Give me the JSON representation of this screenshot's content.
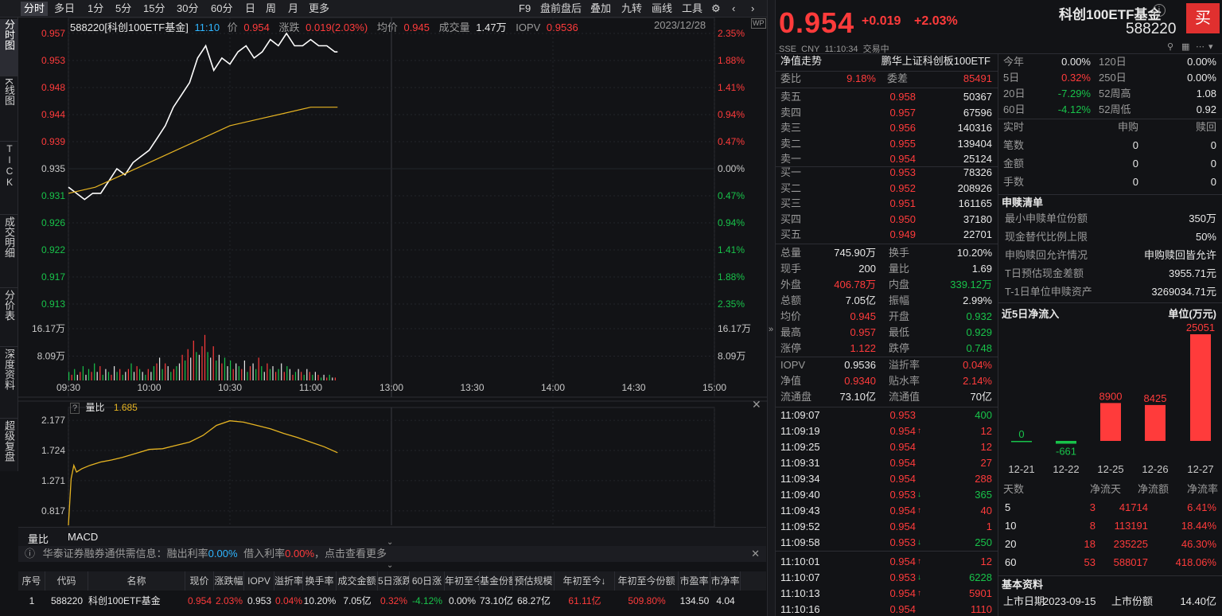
{
  "toolbar": {
    "tabs": [
      "分时",
      "多日",
      "1分",
      "5分",
      "15分",
      "30分",
      "60分",
      "日",
      "周",
      "月",
      "更多"
    ],
    "right_items": [
      "F9",
      "盘前盘后",
      "叠加",
      "九转",
      "画线",
      "工具"
    ]
  },
  "left_rail": [
    "分时图",
    "K线图",
    "TICK",
    "成交明细",
    "分价表",
    "深度资料",
    "超级复盘"
  ],
  "chart_header": {
    "code_name": "588220[科创100ETF基金]",
    "time": "11:10",
    "price_label": "价",
    "price": "0.954",
    "change_label": "涨跌",
    "change": "0.019(2.03%)",
    "avg_label": "均价",
    "avg": "0.945",
    "vol_label": "成交量",
    "vol": "1.47万",
    "iopv_label": "IOPV",
    "iopv": "0.9536",
    "date": "2023/12/28"
  },
  "chart_data": {
    "type": "line",
    "title": "",
    "x_ticks": [
      "09:30",
      "10:00",
      "10:30",
      "11:00",
      "13:00",
      "13:30",
      "14:00",
      "14:30",
      "15:00"
    ],
    "y_left_ticks": [
      "0.957",
      "0.953",
      "0.948",
      "0.944",
      "0.939",
      "0.935",
      "0.931",
      "0.926",
      "0.922",
      "0.917",
      "0.913"
    ],
    "y_right_ticks": [
      "2.35%",
      "1.88%",
      "1.41%",
      "0.94%",
      "0.47%",
      "0.00%",
      "0.47%",
      "0.94%",
      "1.41%",
      "1.88%",
      "2.35%"
    ],
    "ylim": [
      0.913,
      0.957
    ],
    "prev_close": 0.935,
    "series": [
      {
        "name": "价",
        "color": "#ffffff",
        "x_minutes": [
          0,
          3,
          6,
          9,
          12,
          15,
          18,
          21,
          24,
          27,
          30,
          33,
          36,
          39,
          42,
          45,
          48,
          51,
          54,
          57,
          60,
          63,
          66,
          69,
          72,
          75,
          78,
          81,
          84,
          87,
          90,
          93,
          96,
          99,
          100
        ],
        "values": [
          0.932,
          0.931,
          0.93,
          0.931,
          0.931,
          0.933,
          0.935,
          0.934,
          0.936,
          0.937,
          0.938,
          0.94,
          0.942,
          0.945,
          0.947,
          0.949,
          0.953,
          0.955,
          0.951,
          0.953,
          0.952,
          0.954,
          0.955,
          0.953,
          0.954,
          0.956,
          0.955,
          0.957,
          0.955,
          0.955,
          0.956,
          0.955,
          0.955,
          0.954,
          0.954
        ]
      },
      {
        "name": "均价",
        "color": "#e6b422",
        "x_minutes": [
          0,
          10,
          20,
          30,
          40,
          50,
          60,
          70,
          80,
          90,
          100
        ],
        "values": [
          0.931,
          0.932,
          0.934,
          0.936,
          0.938,
          0.94,
          0.942,
          0.943,
          0.944,
          0.945,
          0.945
        ]
      }
    ],
    "volume": {
      "y_ticks": [
        "16.17万",
        "8.09万"
      ],
      "ymax": 16.17,
      "bars": [
        3,
        2,
        4,
        2,
        3,
        5,
        2,
        4,
        3,
        6,
        3,
        5,
        2,
        4,
        3,
        2,
        5,
        3,
        4,
        2,
        3,
        4,
        6,
        3,
        5,
        4,
        3,
        2,
        4,
        3,
        5,
        6,
        8,
        4,
        6,
        5,
        3,
        4,
        5,
        6,
        9,
        7,
        11,
        8,
        14,
        10,
        9,
        12,
        16,
        10,
        8,
        12,
        7,
        9,
        6,
        8,
        5,
        7,
        4,
        6,
        5,
        4,
        7,
        3,
        5,
        6,
        4,
        8,
        5,
        3,
        6,
        4,
        5,
        3,
        4,
        6,
        3,
        5,
        4,
        2,
        3,
        4,
        3,
        2,
        4,
        3,
        2,
        3,
        2,
        1,
        2,
        1,
        2,
        1,
        1
      ],
      "colors": [
        "g",
        "r",
        "g",
        "w",
        "r",
        "g",
        "w",
        "g",
        "r",
        "g",
        "w",
        "r",
        "g",
        "w",
        "g",
        "r",
        "w",
        "g",
        "r",
        "g",
        "w",
        "r",
        "g",
        "w",
        "r",
        "g",
        "w",
        "g",
        "r",
        "w",
        "g",
        "r",
        "w",
        "g",
        "r",
        "w",
        "g",
        "r",
        "g",
        "w",
        "r",
        "g",
        "r",
        "w",
        "r",
        "g",
        "w",
        "r",
        "r",
        "g",
        "w",
        "r",
        "g",
        "w",
        "r",
        "g",
        "w",
        "g",
        "r",
        "w",
        "g",
        "r",
        "w",
        "g",
        "r",
        "w",
        "g",
        "r",
        "g",
        "w",
        "r",
        "g",
        "w",
        "r",
        "g",
        "w",
        "r",
        "g",
        "w",
        "r",
        "g",
        "w",
        "r",
        "g",
        "w",
        "r",
        "g",
        "w",
        "r",
        "g",
        "w",
        "r",
        "g",
        "w",
        "r"
      ]
    },
    "ratio": {
      "label": "量比",
      "value": "1.685",
      "y_ticks": [
        "2.177",
        "1.724",
        "1.271",
        "0.817"
      ],
      "ylim": [
        0.6,
        2.25
      ],
      "x_minutes": [
        0,
        1,
        2,
        3,
        5,
        8,
        12,
        16,
        20,
        25,
        30,
        35,
        40,
        45,
        50,
        55,
        60,
        65,
        70,
        75,
        80,
        85,
        90,
        95,
        100
      ],
      "values": [
        0.6,
        1.3,
        1.5,
        1.4,
        1.45,
        1.5,
        1.55,
        1.58,
        1.62,
        1.68,
        1.74,
        1.75,
        1.8,
        1.85,
        1.95,
        2.1,
        2.17,
        2.15,
        2.1,
        2.05,
        1.98,
        1.92,
        1.85,
        1.78,
        1.69
      ]
    }
  },
  "bottom_tabs": [
    "量比",
    "MACD"
  ],
  "info_bar": {
    "text1": "华泰证券融券通供需信息：融出利率",
    "rate1": "0.00%",
    "text2": "借入利率",
    "rate2": "0.00%",
    "text3": "，点击查看更多"
  },
  "bottom_table": {
    "headers": [
      "序号",
      "代码",
      "名称",
      "现价",
      "涨跌幅",
      "IOPV",
      "溢折率",
      "换手率",
      "成交金额",
      "5日涨跌",
      "60日涨",
      "年初至今",
      "基金份额",
      "预估规模",
      "年初至今↓",
      "年初至今份额",
      "市盈率",
      "市净率"
    ],
    "row": [
      "1",
      "588220",
      "科创100ETF基金",
      "0.954",
      "2.03%",
      "0.953",
      "0.04%",
      "10.20%",
      "7.05亿",
      "0.32%",
      "-4.12%",
      "0.00%",
      "73.10亿",
      "68.27亿",
      "61.11亿",
      "509.80%",
      "134.50",
      "4.04"
    ]
  },
  "quote": {
    "price": "0.954",
    "change": "+0.019",
    "pct": "+2.03%",
    "name": "科创100ETF基金",
    "code": "588220",
    "buy_label": "买",
    "market": "SSE",
    "currency": "CNY",
    "time": "11:10:34",
    "status": "交易中",
    "nav_trend": "净值走势",
    "index_name": "鹏华上证科创板100ETF",
    "weibi_label": "委比",
    "weibi": "9.18%",
    "weicha_label": "委差",
    "weicha": "85491",
    "asks": [
      {
        "label": "卖五",
        "price": "0.958",
        "vol": "50367"
      },
      {
        "label": "卖四",
        "price": "0.957",
        "vol": "67596"
      },
      {
        "label": "卖三",
        "price": "0.956",
        "vol": "140316"
      },
      {
        "label": "卖二",
        "price": "0.955",
        "vol": "139404"
      },
      {
        "label": "卖一",
        "price": "0.954",
        "vol": "25124"
      }
    ],
    "bids": [
      {
        "label": "买一",
        "price": "0.953",
        "vol": "78326"
      },
      {
        "label": "买二",
        "price": "0.952",
        "vol": "208926"
      },
      {
        "label": "买三",
        "price": "0.951",
        "vol": "161165"
      },
      {
        "label": "买四",
        "price": "0.950",
        "vol": "37180"
      },
      {
        "label": "买五",
        "price": "0.949",
        "vol": "22701"
      }
    ],
    "stats": [
      {
        "l1": "总量",
        "v1": "745.90万",
        "c1": "white",
        "l2": "换手",
        "v2": "10.20%",
        "c2": "white"
      },
      {
        "l1": "现手",
        "v1": "200",
        "c1": "white",
        "l2": "量比",
        "v2": "1.69",
        "c2": "white"
      },
      {
        "l1": "外盘",
        "v1": "406.78万",
        "c1": "red",
        "l2": "内盘",
        "v2": "339.12万",
        "c2": "green"
      },
      {
        "l1": "总额",
        "v1": "7.05亿",
        "c1": "white",
        "l2": "振幅",
        "v2": "2.99%",
        "c2": "white"
      },
      {
        "l1": "均价",
        "v1": "0.945",
        "c1": "red",
        "l2": "开盘",
        "v2": "0.932",
        "c2": "green"
      },
      {
        "l1": "最高",
        "v1": "0.957",
        "c1": "red",
        "l2": "最低",
        "v2": "0.929",
        "c2": "green"
      },
      {
        "l1": "涨停",
        "v1": "1.122",
        "c1": "red",
        "l2": "跌停",
        "v2": "0.748",
        "c2": "green"
      }
    ],
    "stats2": [
      {
        "l1": "IOPV",
        "v1": "0.9536",
        "c1": "white",
        "l2": "溢折率",
        "v2": "0.04%",
        "c2": "red"
      },
      {
        "l1": "净值",
        "v1": "0.9340",
        "c1": "red",
        "l2": "贴水率",
        "v2": "2.14%",
        "c2": "red"
      },
      {
        "l1": "流通盘",
        "v1": "73.10亿",
        "c1": "white",
        "l2": "流通值",
        "v2": "70亿",
        "c2": "white"
      }
    ],
    "ticks": [
      {
        "t": "11:09:07",
        "p": "0.953",
        "a": "",
        "v": "400",
        "vc": "green"
      },
      {
        "t": "11:09:19",
        "p": "0.954",
        "a": "up",
        "v": "12",
        "vc": "red"
      },
      {
        "t": "11:09:25",
        "p": "0.954",
        "a": "",
        "v": "12",
        "vc": "red"
      },
      {
        "t": "11:09:31",
        "p": "0.954",
        "a": "",
        "v": "27",
        "vc": "red"
      },
      {
        "t": "11:09:34",
        "p": "0.954",
        "a": "",
        "v": "288",
        "vc": "red"
      },
      {
        "t": "11:09:40",
        "p": "0.953",
        "a": "down",
        "v": "365",
        "vc": "green"
      },
      {
        "t": "11:09:43",
        "p": "0.954",
        "a": "up",
        "v": "40",
        "vc": "red"
      },
      {
        "t": "11:09:52",
        "p": "0.954",
        "a": "",
        "v": "1",
        "vc": "red"
      },
      {
        "t": "11:09:58",
        "p": "0.953",
        "a": "down",
        "v": "250",
        "vc": "green"
      },
      {
        "t": "11:10:01",
        "p": "0.954",
        "a": "up",
        "v": "12",
        "vc": "red"
      },
      {
        "t": "11:10:07",
        "p": "0.953",
        "a": "down",
        "v": "6228",
        "vc": "green"
      },
      {
        "t": "11:10:13",
        "p": "0.954",
        "a": "up",
        "v": "5901",
        "vc": "red"
      },
      {
        "t": "11:10:16",
        "p": "0.954",
        "a": "",
        "v": "1110",
        "vc": "red"
      }
    ]
  },
  "perf": [
    {
      "l1": "今年",
      "v1": "0.00%",
      "c1": "white",
      "l2": "120日",
      "v2": "0.00%",
      "c2": "white"
    },
    {
      "l1": "5日",
      "v1": "0.32%",
      "c1": "red",
      "l2": "250日",
      "v2": "0.00%",
      "c2": "white"
    },
    {
      "l1": "20日",
      "v1": "-7.29%",
      "c1": "green",
      "l2": "52周高",
      "v2": "1.08",
      "c2": "white"
    },
    {
      "l1": "60日",
      "v1": "-4.12%",
      "c1": "green",
      "l2": "52周低",
      "v2": "0.92",
      "c2": "white"
    }
  ],
  "realtime": {
    "headers": [
      "实时",
      "申购",
      "赎回"
    ],
    "rows": [
      {
        "l": "笔数",
        "a": "0",
        "b": "0"
      },
      {
        "l": "金额",
        "a": "0",
        "b": "0"
      },
      {
        "l": "手数",
        "a": "0",
        "b": "0"
      }
    ]
  },
  "subscription": {
    "title": "申赎清单",
    "rows": [
      {
        "l": "最小申赎单位份额",
        "v": "350万"
      },
      {
        "l": "现金替代比例上限",
        "v": "50%"
      },
      {
        "l": "申购赎回允许情况",
        "v": "申购赎回皆允许"
      },
      {
        "l": "T日预估现金差额",
        "v": "3955.71元"
      },
      {
        "l": "T-1日单位申赎资产",
        "v": "3269034.71元"
      }
    ]
  },
  "flow": {
    "title": "近5日净流入",
    "unit": "单位(万元)",
    "categories": [
      "12-21",
      "12-22",
      "12-25",
      "12-26",
      "12-27"
    ],
    "values": [
      0,
      -661,
      8900,
      8425,
      25051
    ],
    "headers": [
      "天数",
      "净流天",
      "净流额",
      "净流率"
    ],
    "rows": [
      {
        "d": "5",
        "n": "3",
        "a": "41714",
        "r": "6.41%"
      },
      {
        "d": "10",
        "n": "8",
        "a": "113191",
        "r": "18.44%"
      },
      {
        "d": "20",
        "n": "18",
        "a": "235225",
        "r": "46.30%"
      },
      {
        "d": "60",
        "n": "53",
        "a": "588017",
        "r": "418.06%"
      }
    ]
  },
  "basic": {
    "title": "基本资料",
    "l1": "上市日期",
    "v1": "2023-09-15",
    "l2": "上市份额",
    "v2": "14.40亿"
  },
  "colors": {
    "up": "#ff3b3b",
    "down": "#18c34a",
    "avg": "#e6b422",
    "bg": "#121316"
  }
}
